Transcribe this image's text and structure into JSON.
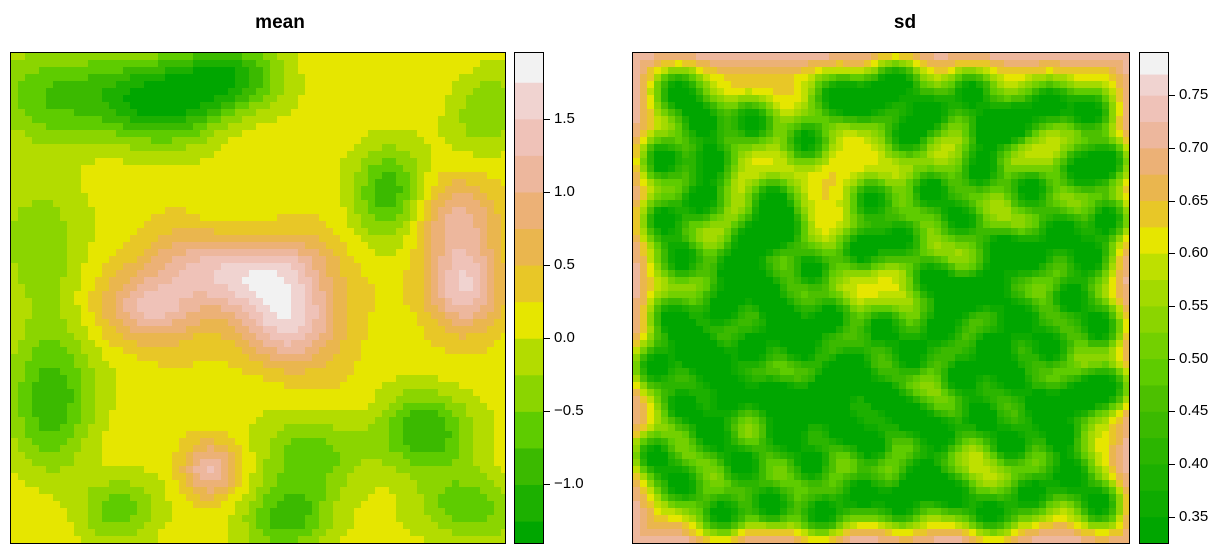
{
  "chart_data": [
    {
      "type": "heatmap",
      "title": "mean",
      "xlabel": "",
      "ylabel": "",
      "legend_placement": "right",
      "color_scale": "terrain",
      "zlim": [
        -1.4,
        1.95
      ],
      "legend_breaks": [
        -1.4,
        -1.25,
        -1.0,
        -0.75,
        -0.5,
        -0.25,
        0.0,
        0.25,
        0.5,
        0.75,
        1.0,
        1.25,
        1.5,
        1.75,
        1.95
      ],
      "legend_colors": [
        "#00A600",
        "#1CB000",
        "#3BBA00",
        "#5ECC00",
        "#8BD500",
        "#B3DC00",
        "#E6E600",
        "#E8C727",
        "#EAB64E",
        "#ECB176",
        "#EDB79D",
        "#EFC2B8",
        "#F0D3D0",
        "#F2F2F2"
      ],
      "legend_ticks": [
        {
          "value": 1.5,
          "label": "1.5"
        },
        {
          "value": 1.0,
          "label": "1.0"
        },
        {
          "value": 0.5,
          "label": "0.5"
        },
        {
          "value": 0.0,
          "label": "0.0"
        },
        {
          "value": -0.5,
          "label": "−0.5"
        },
        {
          "value": -1.0,
          "label": "−1.0"
        }
      ],
      "features": [
        {
          "x": 0.29,
          "y": 0.9,
          "value": -1.3,
          "sx": 0.09,
          "sy": 0.06
        },
        {
          "x": 0.43,
          "y": 0.95,
          "value": -1.1,
          "sx": 0.08,
          "sy": 0.05
        },
        {
          "x": 0.08,
          "y": 0.92,
          "value": -0.7,
          "sx": 0.09,
          "sy": 0.07
        },
        {
          "x": 0.42,
          "y": 0.68,
          "value": 0.0,
          "sx": 0.05,
          "sy": 0.05
        },
        {
          "x": 0.76,
          "y": 0.72,
          "value": -0.9,
          "sx": 0.05,
          "sy": 0.07
        },
        {
          "x": 0.96,
          "y": 0.88,
          "value": -0.5,
          "sx": 0.05,
          "sy": 0.06
        },
        {
          "x": 0.06,
          "y": 0.62,
          "value": -0.5,
          "sx": 0.06,
          "sy": 0.09
        },
        {
          "x": 0.29,
          "y": 0.48,
          "value": 1.3,
          "sx": 0.07,
          "sy": 0.05
        },
        {
          "x": 0.56,
          "y": 0.45,
          "value": 1.55,
          "sx": 0.07,
          "sy": 0.06
        },
        {
          "x": 0.56,
          "y": 0.56,
          "value": 0.9,
          "sx": 0.07,
          "sy": 0.05
        },
        {
          "x": 0.46,
          "y": 0.54,
          "value": 1.0,
          "sx": 0.08,
          "sy": 0.05
        },
        {
          "x": 0.91,
          "y": 0.52,
          "value": 1.55,
          "sx": 0.05,
          "sy": 0.06
        },
        {
          "x": 0.9,
          "y": 0.66,
          "value": 1.0,
          "sx": 0.06,
          "sy": 0.06
        },
        {
          "x": 0.37,
          "y": 0.58,
          "value": 0.8,
          "sx": 0.08,
          "sy": 0.05
        },
        {
          "x": 0.77,
          "y": 0.44,
          "value": 0.0,
          "sx": 0.03,
          "sy": 0.03
        },
        {
          "x": 0.08,
          "y": 0.3,
          "value": -1.0,
          "sx": 0.06,
          "sy": 0.1
        },
        {
          "x": 0.6,
          "y": 0.18,
          "value": -0.6,
          "sx": 0.08,
          "sy": 0.06
        },
        {
          "x": 0.83,
          "y": 0.23,
          "value": -1.0,
          "sx": 0.07,
          "sy": 0.06
        },
        {
          "x": 0.4,
          "y": 0.15,
          "value": 1.3,
          "sx": 0.04,
          "sy": 0.04
        },
        {
          "x": 0.05,
          "y": 0.08,
          "value": 0.2,
          "sx": 0.06,
          "sy": 0.06
        },
        {
          "x": 0.22,
          "y": 0.07,
          "value": -0.6,
          "sx": 0.06,
          "sy": 0.05
        },
        {
          "x": 0.56,
          "y": 0.05,
          "value": -0.9,
          "sx": 0.06,
          "sy": 0.05
        },
        {
          "x": 0.92,
          "y": 0.07,
          "value": -0.7,
          "sx": 0.07,
          "sy": 0.05
        },
        {
          "x": 0.72,
          "y": 0.29,
          "value": 0.3,
          "sx": 0.06,
          "sy": 0.05
        }
      ],
      "baseline": 0.15
    },
    {
      "type": "heatmap",
      "title": "sd",
      "xlabel": "",
      "ylabel": "",
      "legend_placement": "right",
      "color_scale": "terrain",
      "zlim": [
        0.325,
        0.79
      ],
      "legend_breaks": [
        0.325,
        0.35,
        0.375,
        0.4,
        0.425,
        0.45,
        0.475,
        0.5,
        0.525,
        0.55,
        0.575,
        0.6,
        0.625,
        0.65,
        0.675,
        0.7,
        0.725,
        0.75,
        0.77,
        0.79
      ],
      "legend_colors": [
        "#00A600",
        "#0EAB00",
        "#1CB000",
        "#2BB500",
        "#3BBA00",
        "#4CC000",
        "#5ECC00",
        "#73D000",
        "#8BD500",
        "#A3DA00",
        "#BEE000",
        "#E6E600",
        "#E8C727",
        "#EAB64E",
        "#ECB176",
        "#EDB79D",
        "#EFC2B8",
        "#F0D3D0",
        "#F2F2F2"
      ],
      "legend_ticks": [
        {
          "value": 0.75,
          "label": "0.75"
        },
        {
          "value": 0.7,
          "label": "0.70"
        },
        {
          "value": 0.65,
          "label": "0.65"
        },
        {
          "value": 0.6,
          "label": "0.60"
        },
        {
          "value": 0.55,
          "label": "0.55"
        },
        {
          "value": 0.5,
          "label": "0.50"
        },
        {
          "value": 0.45,
          "label": "0.45"
        },
        {
          "value": 0.4,
          "label": "0.40"
        },
        {
          "value": 0.35,
          "label": "0.35"
        }
      ],
      "edge_value": 0.72,
      "point_min": 0.36,
      "point_radius": 0.045,
      "points": [
        [
          0.09,
          0.92
        ],
        [
          0.16,
          0.78
        ],
        [
          0.28,
          0.7
        ],
        [
          0.35,
          0.82
        ],
        [
          0.41,
          0.91
        ],
        [
          0.47,
          0.9
        ],
        [
          0.53,
          0.94
        ],
        [
          0.55,
          0.83
        ],
        [
          0.6,
          0.88
        ],
        [
          0.68,
          0.92
        ],
        [
          0.72,
          0.84
        ],
        [
          0.77,
          0.86
        ],
        [
          0.84,
          0.9
        ],
        [
          0.92,
          0.88
        ],
        [
          0.96,
          0.78
        ],
        [
          0.3,
          0.64
        ],
        [
          0.36,
          0.56
        ],
        [
          0.46,
          0.6
        ],
        [
          0.54,
          0.62
        ],
        [
          0.6,
          0.54
        ],
        [
          0.66,
          0.66
        ],
        [
          0.7,
          0.76
        ],
        [
          0.74,
          0.6
        ],
        [
          0.8,
          0.72
        ],
        [
          0.86,
          0.64
        ],
        [
          0.92,
          0.58
        ],
        [
          0.96,
          0.66
        ],
        [
          0.06,
          0.66
        ],
        [
          0.1,
          0.58
        ],
        [
          0.14,
          0.7
        ],
        [
          0.2,
          0.56
        ],
        [
          0.24,
          0.62
        ],
        [
          0.18,
          0.48
        ],
        [
          0.08,
          0.46
        ],
        [
          0.04,
          0.36
        ],
        [
          0.1,
          0.28
        ],
        [
          0.16,
          0.36
        ],
        [
          0.24,
          0.4
        ],
        [
          0.28,
          0.3
        ],
        [
          0.34,
          0.4
        ],
        [
          0.4,
          0.46
        ],
        [
          0.44,
          0.36
        ],
        [
          0.5,
          0.44
        ],
        [
          0.56,
          0.38
        ],
        [
          0.62,
          0.44
        ],
        [
          0.66,
          0.34
        ],
        [
          0.72,
          0.4
        ],
        [
          0.78,
          0.46
        ],
        [
          0.84,
          0.4
        ],
        [
          0.88,
          0.5
        ],
        [
          0.94,
          0.44
        ],
        [
          0.96,
          0.32
        ],
        [
          0.9,
          0.3
        ],
        [
          0.82,
          0.28
        ],
        [
          0.76,
          0.2
        ],
        [
          0.7,
          0.26
        ],
        [
          0.62,
          0.22
        ],
        [
          0.56,
          0.26
        ],
        [
          0.48,
          0.2
        ],
        [
          0.42,
          0.24
        ],
        [
          0.36,
          0.16
        ],
        [
          0.3,
          0.22
        ],
        [
          0.22,
          0.16
        ],
        [
          0.16,
          0.22
        ],
        [
          0.1,
          0.12
        ],
        [
          0.04,
          0.18
        ],
        [
          0.18,
          0.06
        ],
        [
          0.28,
          0.08
        ],
        [
          0.38,
          0.06
        ],
        [
          0.46,
          0.1
        ],
        [
          0.54,
          0.08
        ],
        [
          0.64,
          0.1
        ],
        [
          0.72,
          0.06
        ],
        [
          0.8,
          0.1
        ],
        [
          0.88,
          0.14
        ],
        [
          0.94,
          0.08
        ],
        [
          0.86,
          0.22
        ],
        [
          0.5,
          0.3
        ],
        [
          0.4,
          0.32
        ],
        [
          0.06,
          0.78
        ],
        [
          0.24,
          0.86
        ],
        [
          0.8,
          0.58
        ],
        [
          0.66,
          0.5
        ],
        [
          0.12,
          0.4
        ],
        [
          0.34,
          0.28
        ],
        [
          0.58,
          0.14
        ],
        [
          0.76,
          0.34
        ],
        [
          0.3,
          0.46
        ],
        [
          0.14,
          0.86
        ],
        [
          0.72,
          0.52
        ],
        [
          0.9,
          0.76
        ],
        [
          0.6,
          0.72
        ],
        [
          0.48,
          0.7
        ],
        [
          0.2,
          0.3
        ],
        [
          0.26,
          0.52
        ]
      ]
    }
  ]
}
